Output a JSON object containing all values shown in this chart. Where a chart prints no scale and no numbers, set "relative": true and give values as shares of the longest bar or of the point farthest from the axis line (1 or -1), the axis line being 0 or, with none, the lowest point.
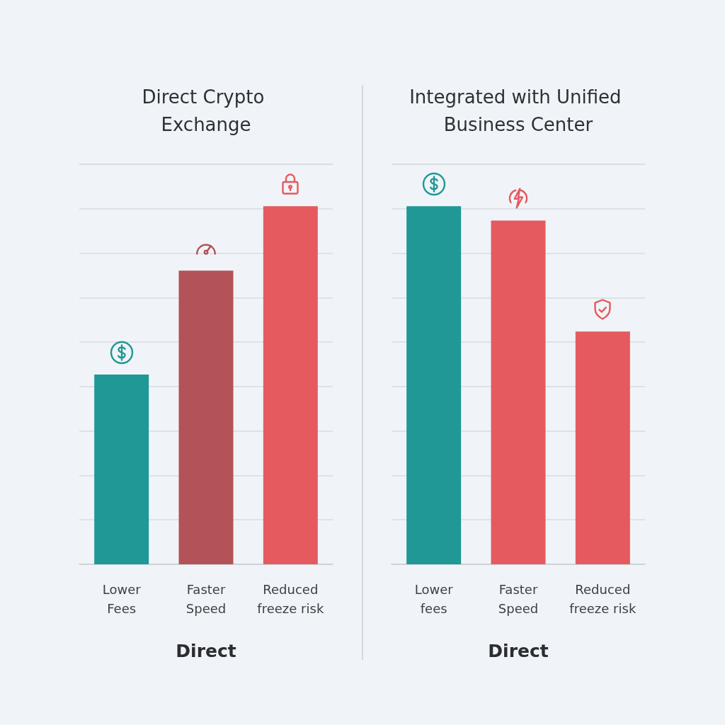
{
  "chart_data": [
    {
      "type": "bar",
      "title": "Direct Crypto Exchange",
      "xlabel": "Direct",
      "categories": [
        "Lower Fees",
        "Faster Speed",
        "Reduced freeze risk"
      ],
      "values": [
        0.53,
        0.82,
        1
      ],
      "colors": [
        "#1f9896",
        "#b35257",
        "#e55a5e"
      ],
      "relative": true,
      "grid": "y"
    },
    {
      "type": "bar",
      "title": "Integrated with Unified Business Center",
      "xlabel": "Direct",
      "categories": [
        "Lower fees",
        "Faster Speed",
        "Reduced freeze risk"
      ],
      "values": [
        1,
        0.96,
        0.65
      ],
      "colors": [
        "#1f9896",
        "#e55a5e",
        "#e55a5e"
      ],
      "relative": true,
      "grid": "y"
    }
  ]
}
